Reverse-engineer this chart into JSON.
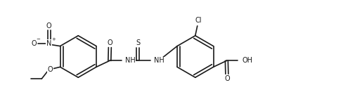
{
  "background_color": "#ffffff",
  "line_color": "#1a1a1a",
  "line_width": 1.2,
  "font_size": 7.0,
  "fig_width": 5.06,
  "fig_height": 1.58,
  "xlim": [
    0,
    10.12
  ],
  "ylim": [
    0,
    3.16
  ]
}
